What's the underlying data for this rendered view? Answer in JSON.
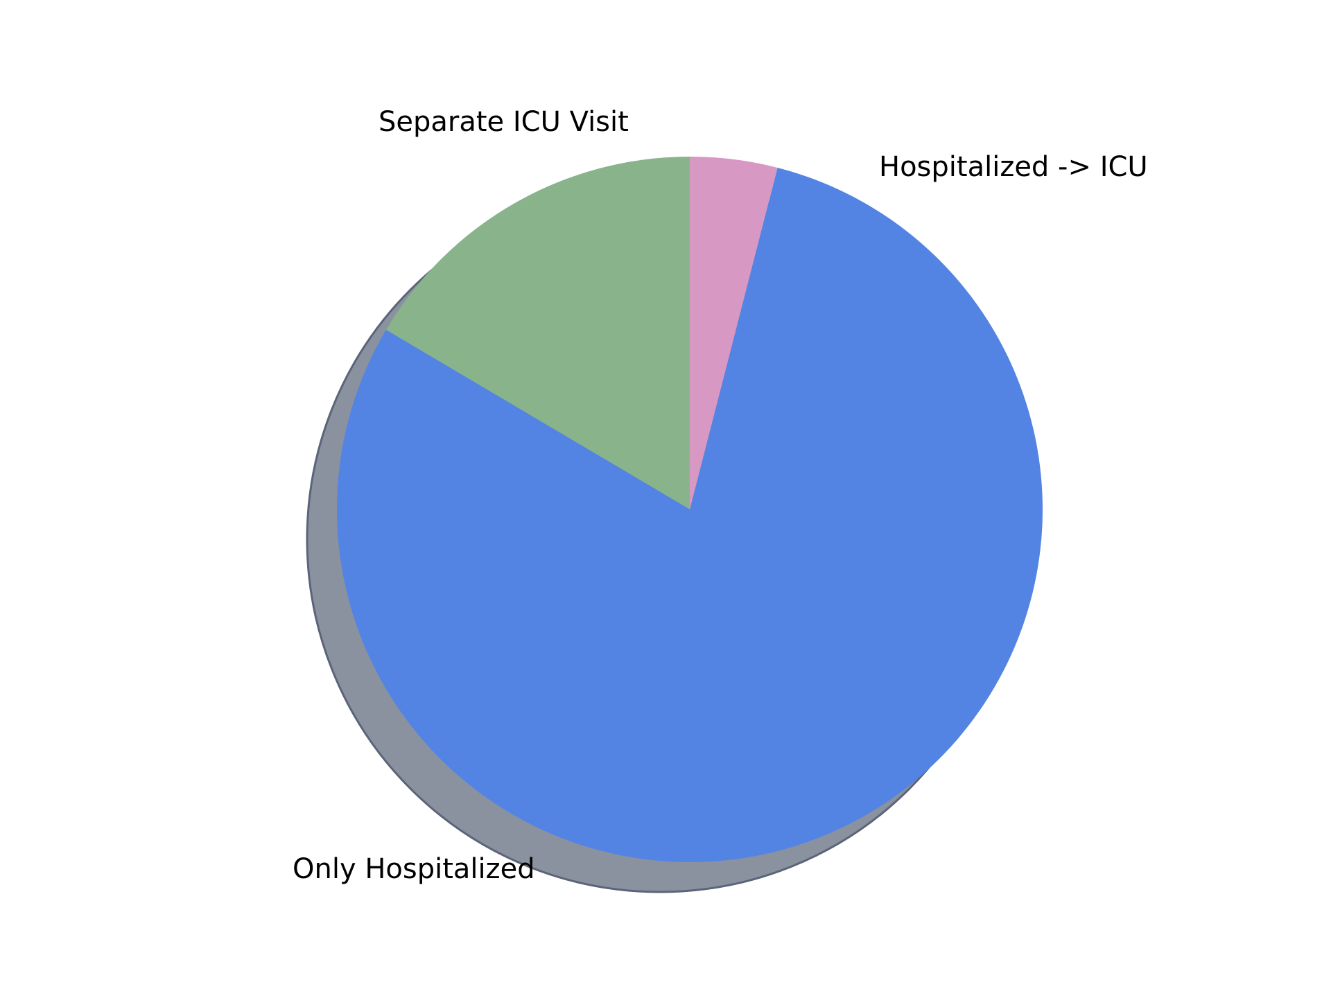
{
  "chart_data": {
    "type": "pie",
    "title": "",
    "start_angle_deg": 90,
    "direction": "counterclockwise",
    "shadow": true,
    "legend": "none",
    "slices": [
      {
        "label": "Hospitalized -> ICU",
        "value": 16.5,
        "color": "#88b38b"
      },
      {
        "label": "Only Hospitalized",
        "value": 79.5,
        "color": "#5384e3"
      },
      {
        "label": "Separate ICU Visit",
        "value": 4.0,
        "color": "#d898c4"
      }
    ],
    "shadow_color": "#8a92a0"
  }
}
